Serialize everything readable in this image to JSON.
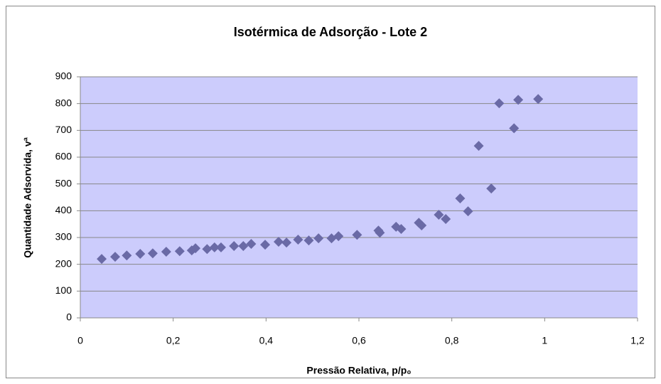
{
  "chart_data": {
    "type": "scatter",
    "title": "Isotérmica de Adsorção - Lote 2",
    "x_label": "Pressão Relativa, p/p₀",
    "y_label": "Quantidade Adsorvida, vª",
    "color": "#6a6aa6",
    "plot_background": "#ccccfc",
    "grid": true,
    "x": [
      0.046,
      0.075,
      0.1,
      0.129,
      0.156,
      0.185,
      0.214,
      0.24,
      0.248,
      0.273,
      0.289,
      0.303,
      0.331,
      0.351,
      0.368,
      0.398,
      0.427,
      0.444,
      0.469,
      0.492,
      0.513,
      0.541,
      0.556,
      0.596,
      0.642,
      0.645,
      0.68,
      0.691,
      0.729,
      0.735,
      0.772,
      0.787,
      0.818,
      0.835,
      0.858,
      0.885,
      0.902,
      0.934,
      0.943,
      0.986
    ],
    "values": [
      220,
      228,
      233,
      239,
      241,
      247,
      249,
      252,
      260,
      257,
      263,
      263,
      268,
      268,
      276,
      273,
      284,
      281,
      292,
      289,
      297,
      297,
      305,
      310,
      326,
      318,
      340,
      332,
      355,
      345,
      385,
      369,
      446,
      398,
      642,
      483,
      801,
      708,
      814,
      817
    ],
    "xlim": [
      0,
      1.2
    ],
    "xticks": [
      0,
      {
        "value": 0.2,
        "label": "0,2"
      },
      {
        "value": 0.4,
        "label": "0,4"
      },
      {
        "value": 0.6,
        "label": "0,6"
      },
      {
        "value": 0.8,
        "label": "0,8"
      },
      1,
      {
        "value": 1.2,
        "label": "1,2"
      }
    ],
    "ylim": [
      0,
      900
    ],
    "yticks": [
      0,
      100,
      200,
      300,
      400,
      500,
      600,
      700,
      800,
      900
    ]
  }
}
